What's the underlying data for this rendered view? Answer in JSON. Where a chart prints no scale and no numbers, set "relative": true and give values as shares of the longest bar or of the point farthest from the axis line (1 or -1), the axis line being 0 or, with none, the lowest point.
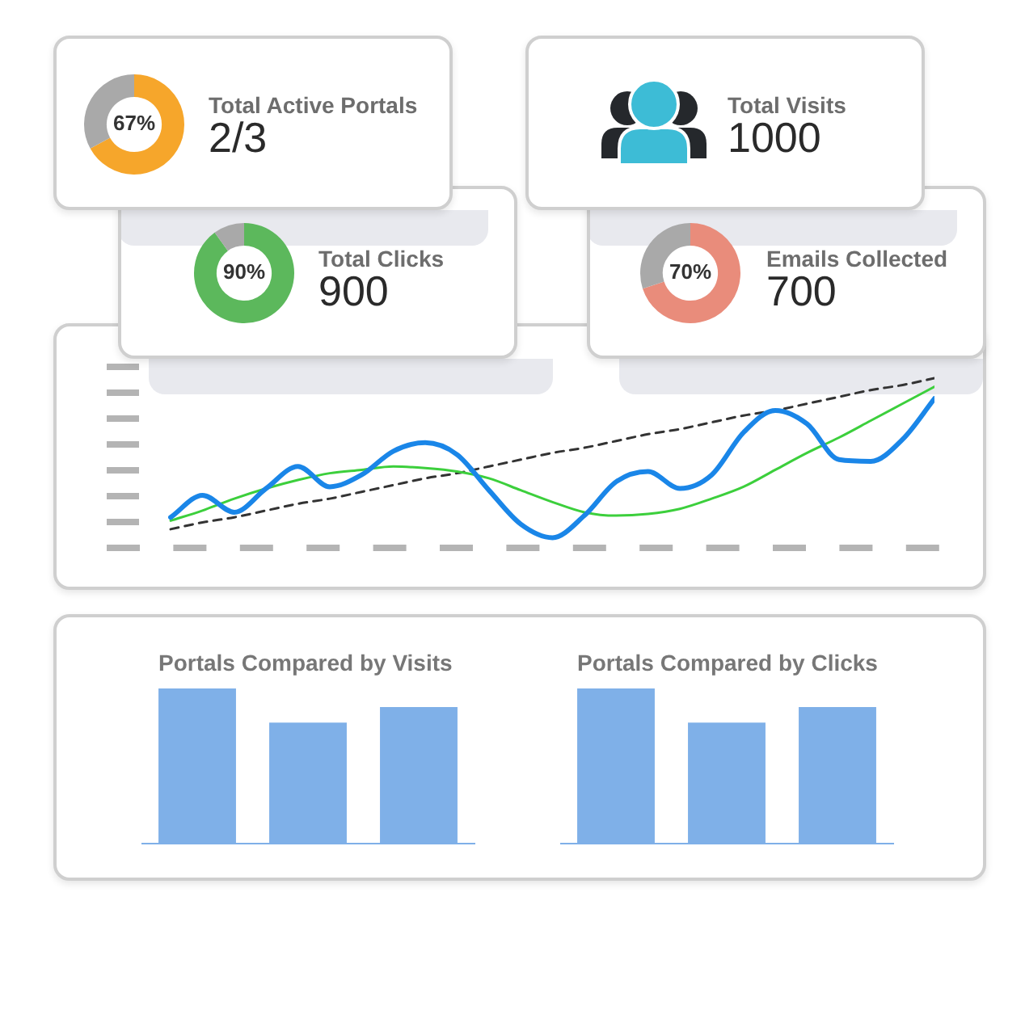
{
  "chart_data": [
    {
      "type": "donut",
      "title": "Total Active Portals",
      "subtitle": "2/3",
      "categories": [
        null,
        null
      ],
      "values": [
        67,
        33
      ],
      "colors": [
        "#f6a62b",
        "#a9a9a9"
      ],
      "value_labels": [
        "67%",
        null
      ]
    },
    {
      "type": "other",
      "title": "Total Visits",
      "subtitle": "1000"
    },
    {
      "type": "donut",
      "title": "Total Clicks",
      "subtitle": "900",
      "categories": [
        null,
        null
      ],
      "values": [
        90,
        10
      ],
      "colors": [
        "#5cb85c",
        "#a9a9a9"
      ],
      "value_labels": [
        "90%",
        null
      ]
    },
    {
      "type": "donut",
      "title": "Emails Collected",
      "subtitle": "700",
      "categories": [
        null,
        null
      ],
      "values": [
        70,
        30
      ],
      "colors": [
        "#e98c7b",
        "#a9a9a9"
      ],
      "value_labels": [
        "70%",
        null
      ]
    },
    {
      "type": "line",
      "relative": true,
      "marker": "none",
      "categories": [
        null,
        null,
        null,
        null,
        null,
        null,
        null,
        null,
        null,
        null,
        null,
        null,
        null,
        null,
        null,
        null,
        null,
        null,
        null,
        null,
        null,
        null,
        null,
        null,
        null
      ],
      "series": [
        {
          "color": "#1a86e8",
          "values": [
            0.18,
            0.31,
            0.21,
            0.35,
            0.48,
            0.36,
            0.43,
            0.57,
            0.62,
            0.55,
            0.34,
            0.14,
            0.06,
            0.19,
            0.39,
            0.45,
            0.35,
            0.43,
            0.68,
            0.81,
            0.73,
            0.52,
            0.51,
            0.64,
            0.88
          ]
        },
        {
          "color": "#3ccf3c",
          "values": [
            0.16,
            0.22,
            0.29,
            0.35,
            0.4,
            0.44,
            0.46,
            0.48,
            0.47,
            0.45,
            0.41,
            0.34,
            0.27,
            0.21,
            0.19,
            0.2,
            0.23,
            0.29,
            0.36,
            0.46,
            0.56,
            0.65,
            0.75,
            0.85,
            0.95
          ]
        },
        {
          "color": "#333333",
          "line_style": "dashed",
          "values": [
            0.11,
            0.15,
            0.18,
            0.22,
            0.26,
            0.29,
            0.33,
            0.37,
            0.41,
            0.44,
            0.48,
            0.52,
            0.56,
            0.59,
            0.63,
            0.67,
            0.7,
            0.74,
            0.78,
            0.81,
            0.85,
            0.89,
            0.93,
            0.96,
            1
          ]
        }
      ]
    },
    {
      "type": "bar",
      "relative": true,
      "title": "Portals Compared by Visits",
      "categories": [
        null,
        null,
        null
      ],
      "values": [
        1,
        0.78,
        0.88
      ],
      "color": "#7fb0e8"
    },
    {
      "type": "bar",
      "relative": true,
      "title": "Portals Compared by Clicks",
      "categories": [
        null,
        null,
        null
      ],
      "values": [
        1,
        0.78,
        0.88
      ],
      "color": "#7fb0e8"
    }
  ]
}
